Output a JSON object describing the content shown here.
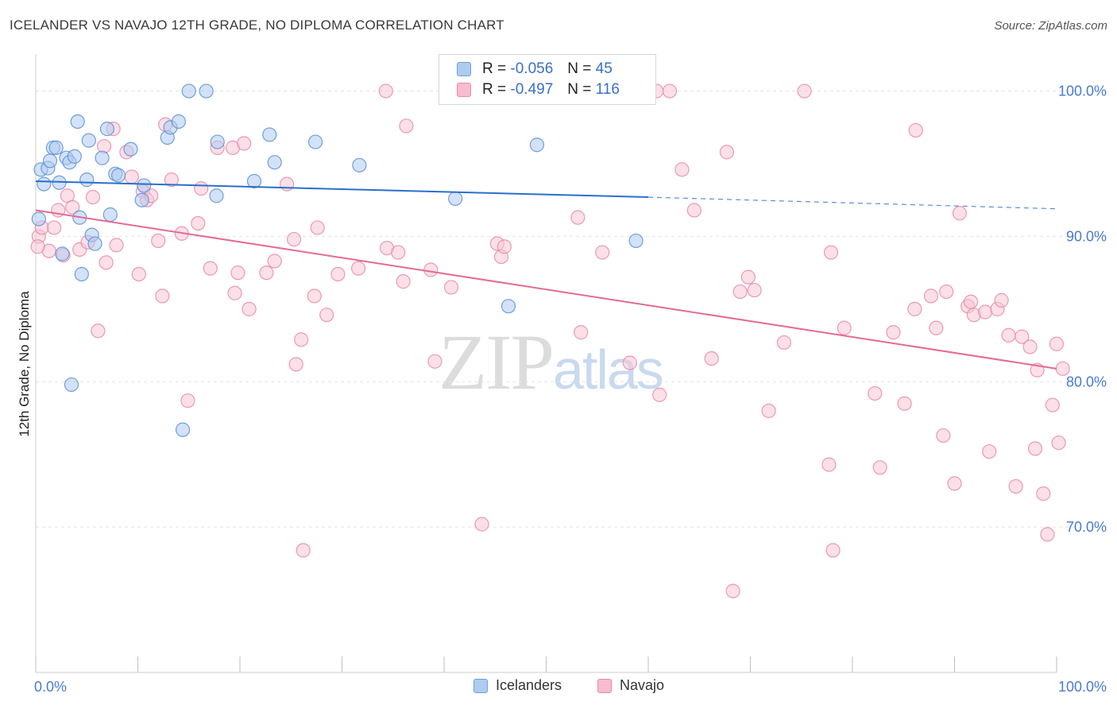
{
  "title": "ICELANDER VS NAVAJO 12TH GRADE, NO DIPLOMA CORRELATION CHART",
  "source": "Source: ZipAtlas.com",
  "watermark": {
    "zip": "ZIP",
    "atlas": "atlas"
  },
  "legend": {
    "r_label": "R =",
    "n_label": "N =",
    "rows": [
      {
        "name": "Icelanders",
        "r": "-0.056",
        "n": "45",
        "fill": "#aecbf0",
        "stroke": "#6f9fdc"
      },
      {
        "name": "Navajo",
        "r": "-0.497",
        "n": "116",
        "fill": "#f7bccd",
        "stroke": "#e88aa8"
      }
    ]
  },
  "colors": {
    "icelanders_fill": "#aecbf0",
    "icelanders_stroke": "#5b8fd6",
    "icelanders_line": "#2a6fcc",
    "navajo_fill": "#f7c6d5",
    "navajo_stroke": "#e88aa8",
    "navajo_line": "#e46a95",
    "grid": "#e3e3e3",
    "tick_label": "#4a7bd0"
  },
  "chart_data": {
    "type": "scatter",
    "title": "ICELANDER VS NAVAJO 12TH GRADE, NO DIPLOMA CORRELATION CHART",
    "xlabel": "",
    "ylabel": "12th Grade, No Diploma",
    "xlim": [
      0,
      100
    ],
    "ylim": [
      60,
      102
    ],
    "x_tick_labels": [
      "0.0%",
      "100.0%"
    ],
    "y_ticks": [
      70,
      80,
      90,
      100
    ],
    "y_tick_labels": [
      "70.0%",
      "80.0%",
      "90.0%",
      "100.0%"
    ],
    "grid": true,
    "legend_position": "top-center",
    "series": [
      {
        "name": "Icelanders",
        "r": -0.056,
        "n": 45,
        "trend": {
          "x": [
            0,
            60
          ],
          "y": [
            93.8,
            92.7
          ],
          "dashed_extension_to": [
            100,
            91.9
          ]
        },
        "points": [
          [
            0.3,
            91.2
          ],
          [
            0.5,
            94.6
          ],
          [
            0.8,
            93.6
          ],
          [
            1.2,
            94.7
          ],
          [
            1.4,
            95.2
          ],
          [
            1.7,
            96.1
          ],
          [
            2.0,
            96.1
          ],
          [
            2.3,
            93.7
          ],
          [
            2.6,
            88.8
          ],
          [
            3.0,
            95.4
          ],
          [
            3.3,
            95.1
          ],
          [
            3.5,
            79.8
          ],
          [
            3.8,
            95.5
          ],
          [
            4.1,
            97.9
          ],
          [
            4.3,
            91.3
          ],
          [
            4.5,
            87.4
          ],
          [
            5.0,
            93.9
          ],
          [
            5.2,
            96.6
          ],
          [
            5.5,
            90.1
          ],
          [
            5.8,
            89.5
          ],
          [
            6.5,
            95.4
          ],
          [
            7.0,
            97.4
          ],
          [
            7.3,
            91.5
          ],
          [
            7.8,
            94.3
          ],
          [
            8.1,
            94.2
          ],
          [
            9.3,
            96.0
          ],
          [
            10.4,
            92.5
          ],
          [
            10.6,
            93.5
          ],
          [
            12.9,
            96.8
          ],
          [
            13.2,
            97.5
          ],
          [
            14.0,
            97.9
          ],
          [
            14.4,
            76.7
          ],
          [
            15.0,
            100.0
          ],
          [
            16.7,
            100.0
          ],
          [
            17.7,
            92.8
          ],
          [
            17.8,
            96.5
          ],
          [
            21.4,
            93.8
          ],
          [
            22.9,
            97.0
          ],
          [
            23.4,
            95.1
          ],
          [
            27.4,
            96.5
          ],
          [
            31.7,
            94.9
          ],
          [
            41.1,
            92.6
          ],
          [
            46.3,
            85.2
          ],
          [
            49.1,
            96.3
          ],
          [
            58.8,
            89.7
          ]
        ]
      },
      {
        "name": "Navajo",
        "r": -0.497,
        "n": 116,
        "trend": {
          "x": [
            0,
            100
          ],
          "y": [
            91.8,
            80.9
          ]
        },
        "points": [
          [
            0.3,
            90.0
          ],
          [
            0.6,
            90.6
          ],
          [
            1.3,
            89.0
          ],
          [
            1.8,
            90.6
          ],
          [
            2.2,
            91.8
          ],
          [
            2.7,
            88.7
          ],
          [
            3.1,
            92.8
          ],
          [
            3.6,
            92.0
          ],
          [
            4.3,
            89.1
          ],
          [
            5.1,
            89.6
          ],
          [
            5.6,
            92.7
          ],
          [
            6.1,
            83.5
          ],
          [
            6.7,
            96.2
          ],
          [
            6.9,
            88.2
          ],
          [
            7.6,
            97.4
          ],
          [
            7.9,
            89.4
          ],
          [
            8.9,
            95.8
          ],
          [
            9.4,
            94.1
          ],
          [
            10.1,
            87.4
          ],
          [
            10.5,
            93.1
          ],
          [
            10.9,
            92.5
          ],
          [
            11.3,
            92.8
          ],
          [
            12.0,
            89.7
          ],
          [
            12.4,
            85.9
          ],
          [
            12.7,
            97.7
          ],
          [
            13.3,
            93.9
          ],
          [
            14.3,
            90.2
          ],
          [
            14.9,
            78.7
          ],
          [
            15.9,
            90.9
          ],
          [
            16.2,
            93.3
          ],
          [
            17.1,
            87.8
          ],
          [
            17.8,
            96.1
          ],
          [
            19.3,
            96.1
          ],
          [
            19.5,
            86.1
          ],
          [
            19.8,
            87.5
          ],
          [
            20.4,
            96.4
          ],
          [
            20.9,
            85.0
          ],
          [
            22.6,
            87.5
          ],
          [
            23.4,
            88.3
          ],
          [
            24.6,
            93.6
          ],
          [
            25.3,
            89.8
          ],
          [
            25.5,
            81.2
          ],
          [
            26.0,
            82.9
          ],
          [
            27.3,
            85.9
          ],
          [
            27.6,
            90.6
          ],
          [
            28.5,
            84.6
          ],
          [
            29.6,
            87.4
          ],
          [
            31.6,
            87.8
          ],
          [
            34.3,
            100.0
          ],
          [
            34.4,
            89.2
          ],
          [
            35.5,
            88.9
          ],
          [
            36.0,
            86.9
          ],
          [
            36.3,
            97.6
          ],
          [
            38.7,
            87.7
          ],
          [
            39.1,
            81.4
          ],
          [
            40.7,
            86.5
          ],
          [
            43.7,
            70.2
          ],
          [
            45.2,
            89.5
          ],
          [
            45.6,
            88.6
          ],
          [
            45.9,
            89.3
          ],
          [
            52.4,
            100.0
          ],
          [
            53.1,
            91.3
          ],
          [
            53.4,
            83.4
          ],
          [
            55.5,
            88.9
          ],
          [
            58.2,
            81.3
          ],
          [
            60.8,
            100.0
          ],
          [
            61.1,
            79.1
          ],
          [
            62.1,
            100.0
          ],
          [
            63.3,
            94.6
          ],
          [
            64.5,
            91.8
          ],
          [
            66.2,
            81.6
          ],
          [
            67.7,
            95.8
          ],
          [
            68.3,
            65.6
          ],
          [
            69.0,
            86.2
          ],
          [
            69.8,
            87.2
          ],
          [
            70.4,
            86.3
          ],
          [
            71.8,
            78.0
          ],
          [
            73.3,
            82.7
          ],
          [
            75.3,
            100.0
          ],
          [
            77.7,
            74.3
          ],
          [
            77.9,
            88.9
          ],
          [
            78.1,
            68.4
          ],
          [
            79.2,
            83.7
          ],
          [
            82.2,
            79.2
          ],
          [
            82.7,
            74.1
          ],
          [
            84.0,
            83.4
          ],
          [
            85.1,
            78.5
          ],
          [
            86.1,
            85.0
          ],
          [
            86.2,
            97.3
          ],
          [
            87.7,
            85.9
          ],
          [
            88.2,
            83.7
          ],
          [
            88.9,
            76.3
          ],
          [
            89.2,
            86.2
          ],
          [
            90.0,
            73.0
          ],
          [
            90.5,
            91.6
          ],
          [
            91.3,
            85.2
          ],
          [
            91.6,
            85.5
          ],
          [
            91.9,
            84.6
          ],
          [
            93.0,
            84.8
          ],
          [
            93.4,
            75.2
          ],
          [
            94.2,
            85.0
          ],
          [
            94.6,
            85.6
          ],
          [
            95.3,
            83.2
          ],
          [
            96.0,
            72.8
          ],
          [
            96.6,
            83.1
          ],
          [
            97.4,
            82.4
          ],
          [
            97.9,
            75.4
          ],
          [
            98.1,
            80.8
          ],
          [
            98.7,
            72.3
          ],
          [
            99.1,
            69.5
          ],
          [
            99.6,
            78.4
          ],
          [
            100.0,
            82.6
          ],
          [
            100.2,
            75.8
          ],
          [
            100.6,
            80.9
          ],
          [
            26.2,
            68.4
          ],
          [
            0.2,
            89.3
          ]
        ]
      }
    ]
  }
}
